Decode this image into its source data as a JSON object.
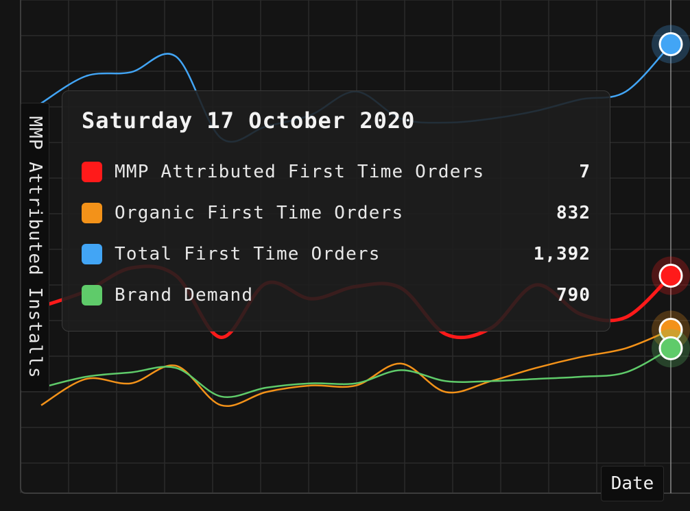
{
  "chart_data": {
    "type": "line",
    "xlabel": "Date",
    "ylabel": "MMP Attributed Installs",
    "grid": true,
    "x_index": [
      0,
      1,
      2,
      3,
      4,
      5,
      6,
      7,
      8,
      9,
      10,
      11,
      12,
      13,
      14
    ],
    "series": [
      {
        "name": "Total First Time Orders",
        "color": "#42a5f5",
        "values": [
          1240,
          1310,
          1320,
          1360,
          1150,
          1180,
          1210,
          1270,
          1200,
          1190,
          1200,
          1220,
          1250,
          1270,
          1392
        ]
      },
      {
        "name": "MMP Attributed First Time Orders",
        "color": "#ff1a1a",
        "values": [
          5,
          6,
          7.5,
          7,
          3,
          6.5,
          5.5,
          6.3,
          6.2,
          3.2,
          3.6,
          6.4,
          4.5,
          4.3,
          7
        ]
      },
      {
        "name": "Organic First Time Orders",
        "color": "#f39219",
        "values": [
          660,
          720,
          710,
          750,
          660,
          690,
          705,
          705,
          755,
          690,
          715,
          745,
          770,
          790,
          832
        ]
      },
      {
        "name": "Brand Demand",
        "color": "#5fcb6a",
        "values": [
          700,
          725,
          735,
          745,
          680,
          700,
          710,
          710,
          740,
          715,
          715,
          720,
          725,
          735,
          790
        ]
      }
    ]
  },
  "tooltip": {
    "title": "Saturday 17 October 2020",
    "rows": [
      {
        "name": "MMP Attributed First Time Orders",
        "value": "7",
        "color": "#ff1a1a"
      },
      {
        "name": "Organic First Time Orders",
        "value": "832",
        "color": "#f39219"
      },
      {
        "name": "Total First Time Orders",
        "value": "1,392",
        "color": "#42a5f5"
      },
      {
        "name": "Brand Demand",
        "value": "790",
        "color": "#5fcb6a"
      }
    ]
  }
}
